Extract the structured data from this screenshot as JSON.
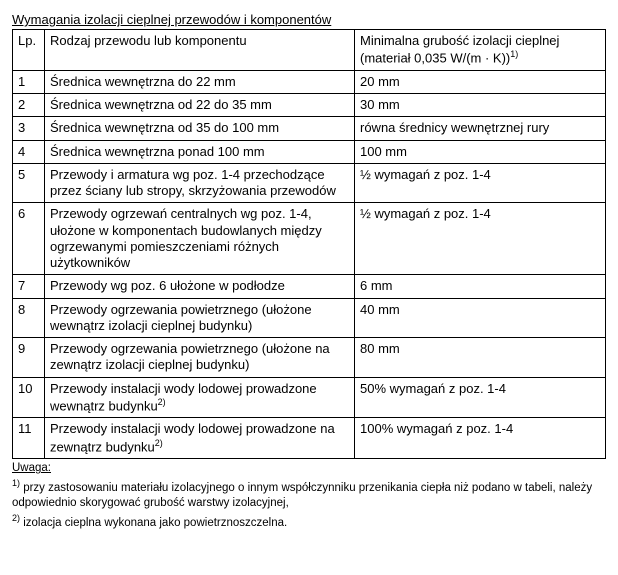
{
  "title": "Wymagania izolacji cieplnej przewodów i komponentów",
  "table": {
    "headers": {
      "lp": "Lp.",
      "desc": "Rodzaj przewodu lub komponentu",
      "val_line1": "Minimalna grubość izolacji cieplnej",
      "val_line2": "(materiał 0,035 W/(m · K))"
    },
    "rows": [
      {
        "lp": "1",
        "desc": "Średnica wewnętrzna do 22 mm",
        "val": "20 mm"
      },
      {
        "lp": "2",
        "desc": "Średnica wewnętrzna od 22 do 35 mm",
        "val": "30 mm"
      },
      {
        "lp": "3",
        "desc": "Średnica wewnętrzna od 35 do 100 mm",
        "val": "równa średnicy wewnętrznej rury"
      },
      {
        "lp": "4",
        "desc": "Średnica wewnętrzna ponad 100 mm",
        "val": "100 mm"
      },
      {
        "lp": "5",
        "desc": "Przewody i armatura wg poz. 1-4 przechodzące przez ściany lub stropy, skrzyżowania przewodów",
        "val": "½ wymagań z poz. 1-4"
      },
      {
        "lp": "6",
        "desc": "Przewody ogrzewań centralnych wg poz. 1-4, ułożone w komponentach budowlanych między ogrzewanymi pomieszczeniami różnych użytkowników",
        "val": "½ wymagań z poz. 1-4"
      },
      {
        "lp": "7",
        "desc": "Przewody wg poz. 6 ułożone w podłodze",
        "val": "6 mm"
      },
      {
        "lp": "8",
        "desc": "Przewody ogrzewania powietrznego (ułożone wewnątrz izolacji cieplnej budynku)",
        "val": "40 mm"
      },
      {
        "lp": "9",
        "desc": "Przewody ogrzewania powietrznego (ułożone na zewnątrz izolacji cieplnej budynku)",
        "val": "80 mm"
      },
      {
        "lp": "10",
        "desc": "Przewody instalacji wody lodowej prowadzone wewnątrz budynku",
        "sup": "2)",
        "val": "50% wymagań z poz. 1-4"
      },
      {
        "lp": "11",
        "desc": "Przewody instalacji wody lodowej prowadzone na zewnątrz budynku",
        "sup": "2)",
        "val": "100% wymagań z poz. 1-4"
      }
    ]
  },
  "notes": {
    "label": "Uwaga:",
    "note1_sup": "1)",
    "note1": " przy zastosowaniu materiału izolacyjnego o innym współczynniku przenikania ciepła niż podano w tabeli, należy odpowiednio skorygować grubość warstwy izolacyjnej,",
    "note2_sup": "2)",
    "note2": " izolacja cieplna wykonana jako powietrznoszczelna."
  }
}
